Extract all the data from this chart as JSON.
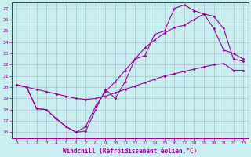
{
  "xlabel": "Windchill (Refroidissement éolien,°C)",
  "xlim": [
    -0.5,
    23.5
  ],
  "ylim": [
    15.5,
    27.5
  ],
  "xticks": [
    0,
    1,
    2,
    3,
    4,
    5,
    6,
    7,
    8,
    9,
    10,
    11,
    12,
    13,
    14,
    15,
    16,
    17,
    18,
    19,
    20,
    21,
    22,
    23
  ],
  "yticks": [
    16,
    17,
    18,
    19,
    20,
    21,
    22,
    23,
    24,
    25,
    26,
    27
  ],
  "bg_color": "#c8eef0",
  "line_color": "#990099",
  "grid_color": "#a0a0c0",
  "line1": {
    "x": [
      0,
      1,
      2,
      3,
      4,
      5,
      6,
      7,
      8,
      9,
      10,
      11,
      12,
      13,
      14,
      15,
      16,
      17,
      18,
      19,
      20,
      21,
      22,
      23
    ],
    "y": [
      20.2,
      20.0,
      19.8,
      19.6,
      19.4,
      19.2,
      19.0,
      18.9,
      19.0,
      19.2,
      19.5,
      19.8,
      20.1,
      20.4,
      20.7,
      21.0,
      21.2,
      21.4,
      21.6,
      21.8,
      22.0,
      22.1,
      21.5,
      21.5
    ]
  },
  "line2": {
    "x": [
      0,
      1,
      2,
      3,
      4,
      5,
      6,
      7,
      8,
      9,
      10,
      11,
      12,
      13,
      14,
      15,
      16,
      17,
      18,
      19,
      20,
      21,
      22,
      23
    ],
    "y": [
      20.2,
      20.0,
      18.1,
      18.0,
      17.2,
      16.5,
      16.0,
      16.1,
      18.0,
      19.8,
      19.0,
      20.5,
      22.5,
      22.8,
      24.7,
      25.0,
      27.0,
      27.3,
      26.8,
      26.5,
      26.3,
      25.2,
      22.5,
      22.3
    ]
  },
  "line3": {
    "x": [
      0,
      1,
      2,
      3,
      4,
      5,
      6,
      7,
      8,
      9,
      10,
      11,
      12,
      13,
      14,
      15,
      16,
      17,
      18,
      19,
      20,
      21,
      22,
      23
    ],
    "y": [
      20.2,
      20.0,
      18.1,
      18.0,
      17.2,
      16.5,
      16.0,
      16.5,
      18.3,
      19.6,
      20.5,
      21.5,
      22.5,
      23.5,
      24.2,
      24.8,
      25.3,
      25.5,
      26.0,
      26.5,
      25.2,
      23.3,
      23.0,
      22.5
    ]
  }
}
